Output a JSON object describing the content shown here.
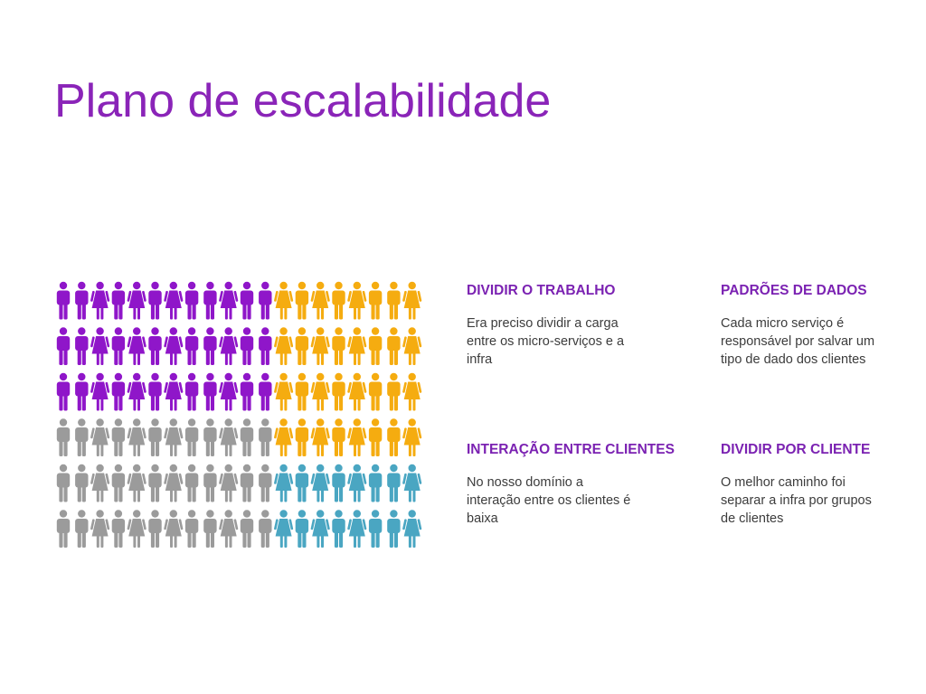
{
  "slide": {
    "title": "Plano de escalabilidade"
  },
  "infographic": {
    "rows": 6,
    "cols": 20,
    "figure_pattern": [
      "man",
      "man",
      "woman",
      "man",
      "woman",
      "man",
      "woman",
      "man",
      "man",
      "woman",
      "man",
      "man",
      "woman",
      "man",
      "woman",
      "man",
      "woman",
      "man",
      "man",
      "woman"
    ],
    "colors": {
      "purple": "#8f16c9",
      "yellow": "#f5ac10",
      "gray": "#9b9b9b",
      "teal": "#4aa6c2"
    },
    "row_segments": [
      [
        {
          "color": "purple",
          "count": 12
        },
        {
          "color": "yellow",
          "count": 8
        }
      ],
      [
        {
          "color": "purple",
          "count": 12
        },
        {
          "color": "yellow",
          "count": 8
        }
      ],
      [
        {
          "color": "purple",
          "count": 12
        },
        {
          "color": "yellow",
          "count": 8
        }
      ],
      [
        {
          "color": "gray",
          "count": 12
        },
        {
          "color": "yellow",
          "count": 8
        }
      ],
      [
        {
          "color": "gray",
          "count": 12
        },
        {
          "color": "teal",
          "count": 8
        }
      ],
      [
        {
          "color": "gray",
          "count": 12
        },
        {
          "color": "teal",
          "count": 8
        }
      ]
    ]
  },
  "blocks": [
    {
      "heading": "DIVIDIR O TRABALHO",
      "body": "Era preciso dividir a carga entre os micro-serviços e a infra"
    },
    {
      "heading": "PADRÕES DE DADOS",
      "body": "Cada micro serviço é responsável por salvar um tipo de dado dos clientes"
    },
    {
      "heading": "INTERAÇÃO ENTRE CLIENTES",
      "body": "No nosso domínio a interação entre os clientes é baixa"
    },
    {
      "heading": "DIVIDIR POR CLIENTE",
      "body": "O melhor caminho foi separar a infra por grupos de clientes"
    }
  ]
}
